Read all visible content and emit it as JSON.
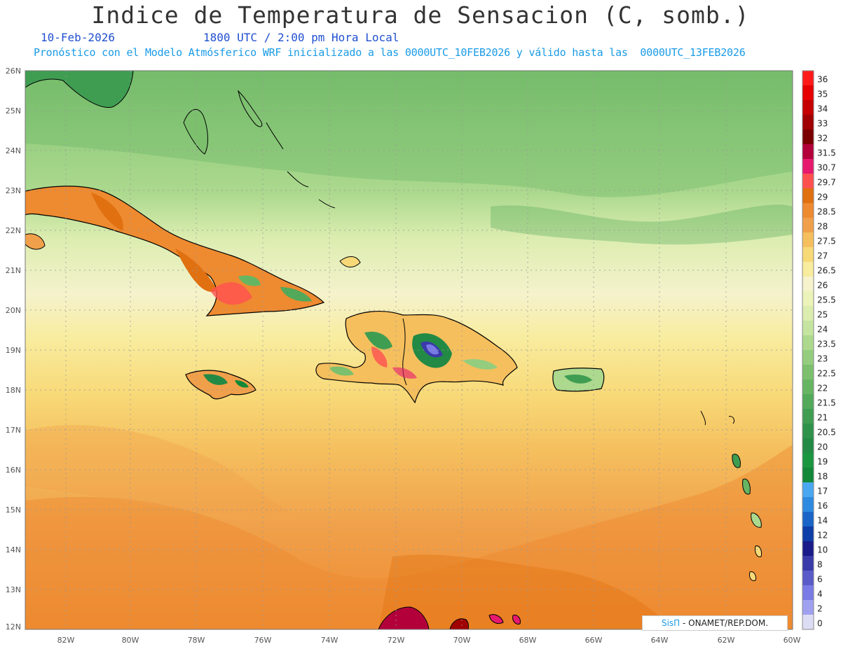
{
  "header": {
    "title": "Indice de Temperatura de Sensacion (C, somb.)",
    "date": "10-Feb-2026",
    "time": "1800 UTC / 2:00 pm Hora Local",
    "forecast_info": "Pronóstico con el Modelo Atmósferico WRF inicializado a las 0000UTC_10FEB2026 y válido hasta las  0000UTC_13FEB2026"
  },
  "map": {
    "lat_labels": [
      "26N",
      "25N",
      "24N",
      "23N",
      "22N",
      "21N",
      "20N",
      "19N",
      "18N",
      "17N",
      "16N",
      "15N",
      "14N",
      "13N",
      "12N"
    ],
    "lon_labels": [
      "82W",
      "80W",
      "78W",
      "76W",
      "74W",
      "72W",
      "70W",
      "68W",
      "66W",
      "64W",
      "62W",
      "60W"
    ]
  },
  "colorbar": {
    "levels": [
      "36",
      "35",
      "34",
      "33",
      "32",
      "31.5",
      "30.7",
      "29.7",
      "29",
      "28.5",
      "28",
      "27.5",
      "27",
      "26.5",
      "26",
      "25.5",
      "25",
      "24",
      "23.5",
      "23",
      "22.5",
      "22",
      "21.5",
      "21",
      "20.5",
      "20",
      "19",
      "18",
      "17",
      "16",
      "14",
      "12",
      "10",
      "8",
      "6",
      "4",
      "2",
      "0"
    ],
    "colors": [
      "#ff1a1a",
      "#e60000",
      "#c40000",
      "#a00000",
      "#7a0000",
      "#b3003b",
      "#e6196e",
      "#ff5050",
      "#e07010",
      "#ee8a30",
      "#f0a04a",
      "#f5bf5e",
      "#f8d978",
      "#f8ec9e",
      "#f5f2cc",
      "#ecf3b8",
      "#dcedb0",
      "#c4e4a0",
      "#acd98e",
      "#94cd7e",
      "#7cc06e",
      "#66b563",
      "#52a95a",
      "#3f9d52",
      "#2f924a",
      "#228a44",
      "#1a963f",
      "#128838",
      "#4aa8f2",
      "#2e8ae0",
      "#1a64c8",
      "#0e3ea8",
      "#1a1a8a",
      "#3a3aaa",
      "#5a5ac8",
      "#7a7ae6",
      "#a0a0f0",
      "#dcdcf5"
    ]
  },
  "credit": {
    "brand": "SisΠ",
    "org": " - ONAMET/REP.DOM."
  }
}
